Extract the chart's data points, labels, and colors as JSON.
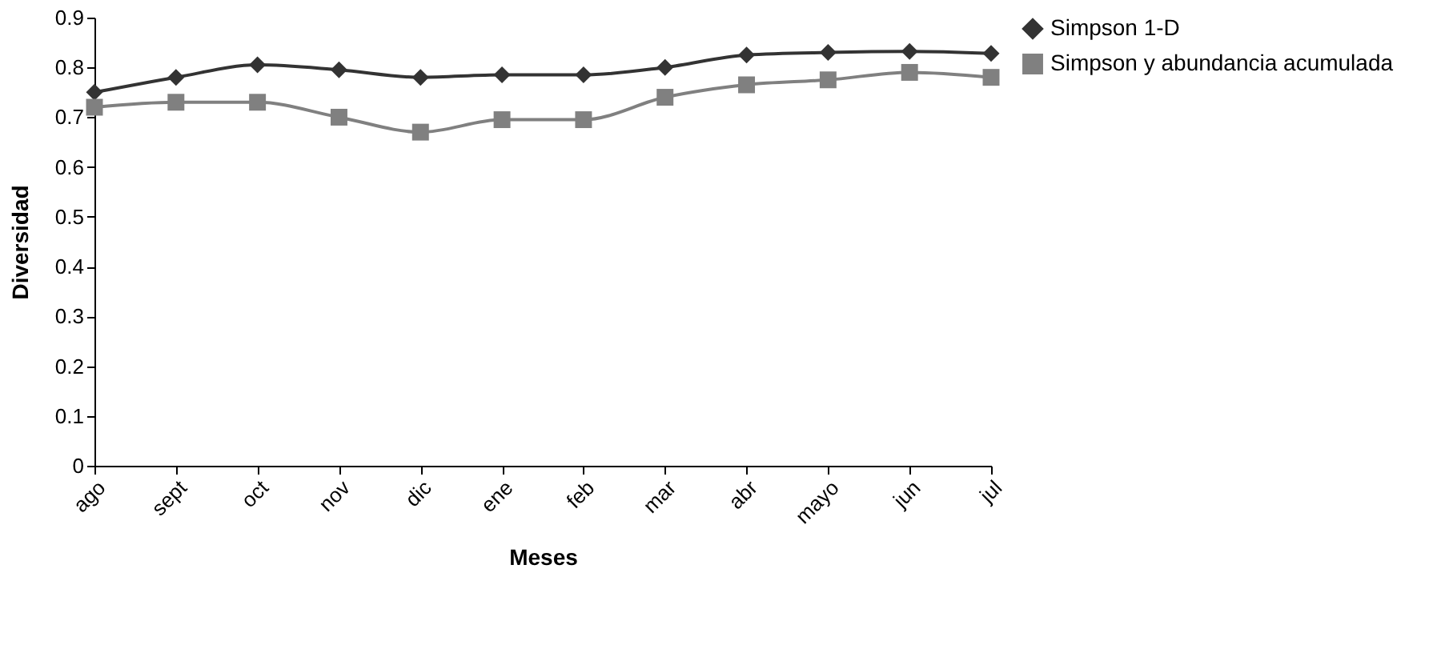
{
  "chart_data": {
    "type": "line",
    "xlabel": "Meses",
    "ylabel": "Diversidad",
    "categories": [
      "ago",
      "sept",
      "oct",
      "nov",
      "dic",
      "ene",
      "feb",
      "mar",
      "abr",
      "mayo",
      "jun",
      "jul"
    ],
    "ylim": [
      0,
      0.9
    ],
    "yticks": [
      0,
      0.1,
      0.2,
      0.3,
      0.4,
      0.5,
      0.6,
      0.7,
      0.8,
      0.9
    ],
    "grid": false,
    "legend": "right",
    "series": [
      {
        "name": "Simpson 1-D",
        "color": "#333333",
        "marker": "diamond",
        "values": [
          0.75,
          0.78,
          0.805,
          0.795,
          0.78,
          0.785,
          0.785,
          0.8,
          0.825,
          0.83,
          0.832,
          0.828
        ]
      },
      {
        "name": "Simpson y abundancia acumulada",
        "color": "#808080",
        "marker": "square",
        "values": [
          0.72,
          0.73,
          0.73,
          0.7,
          0.67,
          0.695,
          0.695,
          0.74,
          0.765,
          0.775,
          0.79,
          0.78
        ]
      }
    ]
  }
}
